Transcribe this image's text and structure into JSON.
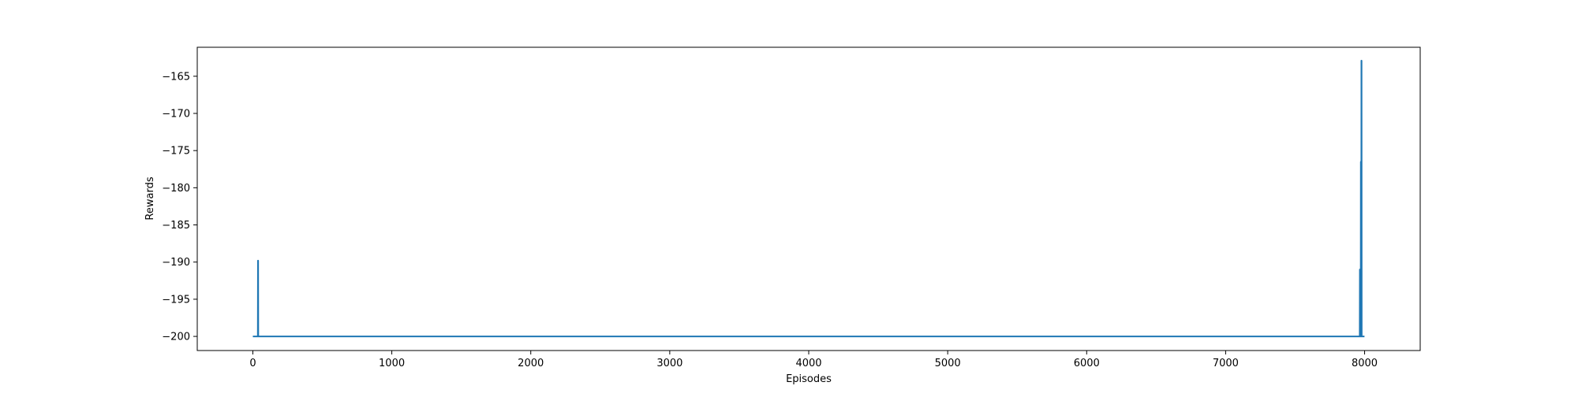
{
  "chart_data": {
    "type": "line",
    "xlabel": "Episodes",
    "ylabel": "Rewards",
    "xlim": [
      -400,
      8400
    ],
    "ylim": [
      -201.9,
      -161.1
    ],
    "x_ticks": [
      0,
      1000,
      2000,
      3000,
      4000,
      5000,
      6000,
      7000,
      8000
    ],
    "y_ticks": [
      -200,
      -195,
      -190,
      -185,
      -180,
      -175,
      -170,
      -165
    ],
    "x_tick_labels": [
      "0",
      "1000",
      "2000",
      "3000",
      "4000",
      "5000",
      "6000",
      "7000",
      "8000"
    ],
    "y_tick_labels": [
      "−200",
      "−195",
      "−190",
      "−185",
      "−180",
      "−175",
      "−170",
      "−165"
    ],
    "grid": false,
    "line_color": "#1f77b4",
    "series": [
      {
        "x": [
          0,
          36,
          37,
          38,
          39,
          7965,
          7966,
          7967,
          7968,
          7969,
          7970,
          7971,
          7972,
          7973,
          7974,
          7975,
          7976,
          7977,
          7978,
          7979,
          7980,
          7981,
          7982,
          7983,
          7984,
          7985,
          7999
        ],
        "y": [
          -200,
          -200,
          -189.8,
          -189.8,
          -200,
          -200,
          -191,
          -191,
          -200,
          -193.5,
          -193.5,
          -200,
          -200,
          -176.5,
          -176.5,
          -200,
          -200,
          -162.9,
          -162.9,
          -200,
          -200,
          -200,
          -200,
          -200,
          -200,
          -200,
          -200
        ]
      }
    ]
  }
}
